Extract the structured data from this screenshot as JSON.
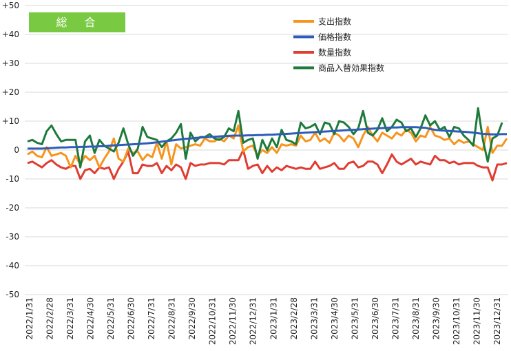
{
  "badge": {
    "label": "総 合",
    "color": "#7ac943"
  },
  "chart_data": {
    "type": "line",
    "ylim": [
      -50,
      50
    ],
    "yticks": [
      "+50",
      "+40",
      "+30",
      "+20",
      "+10",
      "0",
      "-10",
      "-20",
      "-30",
      "-40",
      "-50"
    ],
    "x_labels": [
      "2022/1/31",
      "2022/2/28",
      "2022/3/31",
      "2022/4/30",
      "2022/5/31",
      "2022/6/30",
      "2022/7/31",
      "2022/8/31",
      "2022/9/30",
      "2022/10/31",
      "2022/11/30",
      "2022/12/31",
      "2023/1/31",
      "2023/2/28",
      "2023/3/31",
      "2023/4/30",
      "2023/5/31",
      "2023/6/30",
      "2023/7/31",
      "2023/8/31",
      "2023/9/30",
      "2023/10/31",
      "2023/11/30",
      "2023/12/31"
    ],
    "grid": true,
    "legend_position": "top-right",
    "series": [
      {
        "name": "支出指数",
        "color": "#f7941d",
        "values": [
          -1.5,
          -0.5,
          -2,
          -2.5,
          1,
          -2,
          -1.5,
          -1,
          -2,
          -6,
          -2,
          -5,
          -2,
          -3.5,
          -2,
          -6,
          -3,
          -0.5,
          4,
          -3,
          -4,
          0.5,
          -1,
          -0.5,
          -3.5,
          -1.5,
          -2.5,
          2.5,
          -3,
          3,
          -5,
          2,
          0.5,
          1,
          1.5,
          2,
          1.5,
          4,
          3,
          3,
          4,
          3,
          5,
          4,
          8.5,
          -0.5,
          1,
          1.5,
          -2,
          0,
          -1,
          1,
          -1,
          2,
          1.5,
          2,
          1.5,
          5,
          3,
          3.5,
          6,
          3,
          4,
          2.5,
          6,
          5,
          3,
          5,
          4,
          1,
          5,
          8,
          5,
          3,
          6,
          5,
          4,
          6,
          5,
          7,
          6,
          3,
          5,
          4.5,
          8,
          5,
          4.5,
          3.5,
          4,
          2,
          3.5,
          2.5,
          3,
          2,
          1,
          0,
          8,
          -1,
          1.5,
          1.5,
          4
        ]
      },
      {
        "name": "価格指数",
        "color": "#2e5cb8",
        "values": [
          0.5,
          0.5,
          0.5,
          0.5,
          0.6,
          0.7,
          0.8,
          0.9,
          0.9,
          1.0,
          1.0,
          1.1,
          1.1,
          1.2,
          1.2,
          1.3,
          1.3,
          1.5,
          1.6,
          1.7,
          1.8,
          1.9,
          2.0,
          2.1,
          2.2,
          2.3,
          2.5,
          2.7,
          2.9,
          3.1,
          3.3,
          3.5,
          3.7,
          3.9,
          4.0,
          4.2,
          4.3,
          4.4,
          4.5,
          4.6,
          4.7,
          4.8,
          4.9,
          5.0,
          5.0,
          5.0,
          5.1,
          5.1,
          5.2,
          5.2,
          5.3,
          5.3,
          5.4,
          5.5,
          5.6,
          5.7,
          5.8,
          5.9,
          6.0,
          6.1,
          6.2,
          6.3,
          6.4,
          6.5,
          6.6,
          6.7,
          6.8,
          6.9,
          7.0,
          7.1,
          7.2,
          7.3,
          7.4,
          7.5,
          7.6,
          7.7,
          7.8,
          7.8,
          7.9,
          7.9,
          7.9,
          7.9,
          7.8,
          7.7,
          7.3,
          7.0,
          6.8,
          6.7,
          6.6,
          6.5,
          6.4,
          6.3,
          6.2,
          6.0,
          5.8,
          5.6,
          5.5,
          5.4,
          5.4,
          5.5,
          5.5
        ]
      },
      {
        "name": "数量指数",
        "color": "#e03c31",
        "values": [
          -4.5,
          -4,
          -5,
          -6,
          -4.5,
          -3.5,
          -5,
          -6,
          -6.5,
          -5.5,
          -5.5,
          -10,
          -7,
          -6.5,
          -8,
          -6,
          -6.5,
          -6,
          -10,
          -6.5,
          -4,
          -0.5,
          -8,
          -8,
          -5,
          -5.5,
          -5.5,
          -4.5,
          -8,
          -5.5,
          -7,
          -5,
          -6,
          -10,
          -4.5,
          -5.5,
          -5,
          -5,
          -4.5,
          -4.5,
          -4.5,
          -5,
          -3.5,
          -3.5,
          -3.5,
          0,
          -6.5,
          -5.5,
          -5,
          -8,
          -5.5,
          -7.5,
          -6,
          -7,
          -5.5,
          -6,
          -6.5,
          -6,
          -6.5,
          -6.5,
          -4,
          -6.5,
          -6,
          -5.5,
          -4.5,
          -6.5,
          -6.5,
          -4.5,
          -4,
          -6,
          -5.5,
          -4,
          -4,
          -5,
          -8,
          -5,
          -1.5,
          -4,
          -5,
          -4,
          -3,
          -5,
          -4,
          -4.5,
          -5,
          -2,
          -3.5,
          -3.5,
          -4.5,
          -4,
          -5,
          -4.5,
          -4.5,
          -4.5,
          -5.5,
          -6,
          -6,
          -10.5,
          -5,
          -5,
          -4.5
        ]
      },
      {
        "name": "商品入替効果指数",
        "color": "#1e7a3a",
        "values": [
          3,
          3.5,
          2.5,
          2,
          6.5,
          8.5,
          5.5,
          3,
          3.5,
          3.5,
          3.5,
          -6,
          3,
          5,
          -1,
          3.5,
          1.5,
          0.5,
          -0.5,
          2.5,
          7.5,
          2,
          -2,
          0.5,
          8,
          4.5,
          4,
          3.5,
          1,
          3,
          4,
          6,
          9,
          -3,
          6,
          3,
          4.5,
          4.5,
          5.5,
          4,
          3.5,
          4.5,
          7.5,
          6.5,
          13.5,
          2.5,
          3.5,
          4,
          -3,
          3.5,
          0,
          4,
          1,
          7,
          3.5,
          3,
          2,
          9.5,
          7.5,
          8,
          9,
          5.5,
          9.5,
          9,
          5.5,
          10,
          9.5,
          8,
          5.5,
          7.5,
          13.5,
          6,
          5,
          7,
          11,
          6.5,
          8,
          10.5,
          9.5,
          6.5,
          7.5,
          4.5,
          7.5,
          12,
          8.5,
          10,
          7,
          8,
          4.5,
          8,
          7.5,
          5,
          3.5,
          1.5,
          14.5,
          3.5,
          -4,
          4,
          5,
          9.5
        ]
      }
    ]
  }
}
